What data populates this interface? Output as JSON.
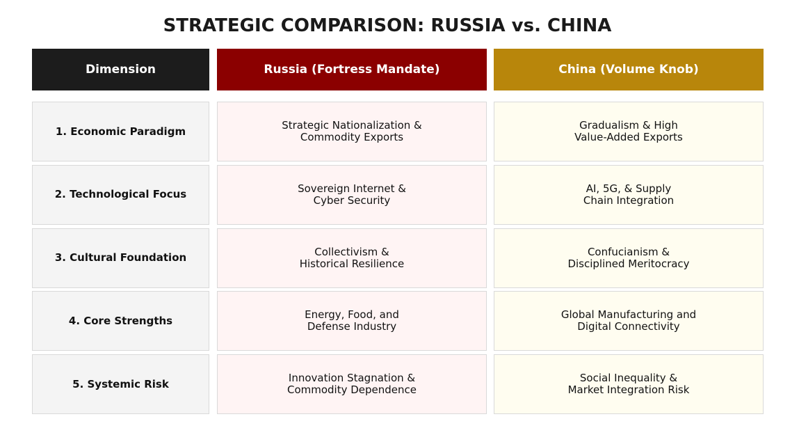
{
  "title": "STRATEGIC COMPARISON: RUSSIA vs. CHINA",
  "table": {
    "headers": [
      "Dimension",
      "Russia (Fortress Mandate)",
      "China (Volume Knob)"
    ],
    "rows": [
      [
        "1. Economic Paradigm",
        "Strategic Nationalization &\nCommodity Exports",
        "Gradualism & High\nValue-Added Exports"
      ],
      [
        "2. Technological Focus",
        "Sovereign Internet &\nCyber Security",
        "AI, 5G, & Supply\nChain Integration"
      ],
      [
        "3. Cultural Foundation",
        "Collectivism &\nHistorical Resilience",
        "Confucianism &\nDisciplined Meritocracy"
      ],
      [
        "4. Core Strengths",
        "Energy, Food, and\nDefense Industry",
        "Global Manufacturing and\nDigital Connectivity"
      ],
      [
        "5. Systemic Risk",
        "Innovation Stagnation &\nCommodity Dependence",
        "Social Inequality &\nMarket Integration Risk"
      ]
    ]
  }
}
